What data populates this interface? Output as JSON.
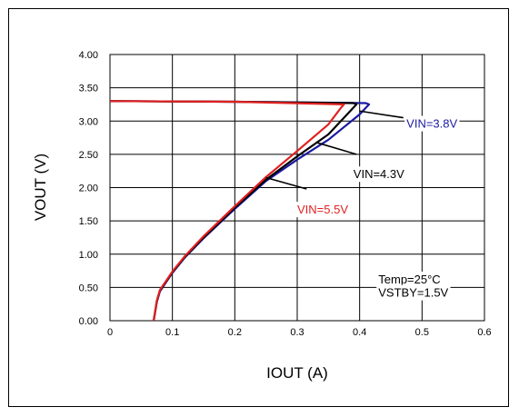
{
  "chart_data": {
    "type": "line",
    "title": "",
    "xlabel": "IOUT (A)",
    "ylabel": "VOUT (V)",
    "xlim": [
      0,
      0.6
    ],
    "ylim": [
      0,
      4.0
    ],
    "x_ticks": [
      "0",
      "0.1",
      "0.2",
      "0.3",
      "0.4",
      "0.5",
      "0.6"
    ],
    "y_ticks": [
      "0.00",
      "0.50",
      "1.00",
      "1.50",
      "2.00",
      "2.50",
      "3.00",
      "3.50",
      "4.00"
    ],
    "grid": true,
    "series": [
      {
        "name": "VIN=3.8V",
        "color": "#1a1aa0",
        "x": [
          0,
          0.2,
          0.41,
          0.415,
          0.4,
          0.35,
          0.3,
          0.25,
          0.2,
          0.15,
          0.12,
          0.1,
          0.09,
          0.08,
          0.075,
          0.07
        ],
        "y": [
          3.3,
          3.29,
          3.27,
          3.25,
          3.1,
          2.72,
          2.42,
          2.1,
          1.68,
          1.24,
          0.95,
          0.72,
          0.58,
          0.44,
          0.28,
          0.0
        ]
      },
      {
        "name": "VIN=4.3V",
        "color": "#000000",
        "x": [
          0,
          0.2,
          0.39,
          0.395,
          0.38,
          0.35,
          0.3,
          0.25,
          0.2,
          0.15,
          0.12,
          0.1,
          0.09,
          0.08,
          0.075,
          0.07
        ],
        "y": [
          3.3,
          3.29,
          3.27,
          3.25,
          3.1,
          2.8,
          2.47,
          2.12,
          1.7,
          1.25,
          0.96,
          0.73,
          0.59,
          0.45,
          0.29,
          0.0
        ]
      },
      {
        "name": "VIN=5.5V",
        "color": "#e02020",
        "x": [
          0,
          0.2,
          0.375,
          0.37,
          0.35,
          0.3,
          0.25,
          0.2,
          0.15,
          0.12,
          0.1,
          0.09,
          0.08,
          0.075,
          0.07
        ],
        "y": [
          3.3,
          3.29,
          3.25,
          3.2,
          2.95,
          2.55,
          2.16,
          1.72,
          1.27,
          0.97,
          0.74,
          0.6,
          0.46,
          0.3,
          0.0
        ]
      }
    ],
    "annotations": [
      {
        "text": "VIN=3.8V",
        "color": "#1a1aa0",
        "x": 0.475,
        "y": 2.9,
        "from": [
          0.4,
          3.15
        ],
        "to": [
          0.47,
          3.05
        ]
      },
      {
        "text": "VIN=4.3V",
        "color": "#000000",
        "x": 0.39,
        "y": 2.14,
        "from": [
          0.33,
          2.68
        ],
        "to": [
          0.395,
          2.5
        ]
      },
      {
        "text": "VIN=5.5V",
        "color": "#e02020",
        "x": 0.3,
        "y": 1.61,
        "from": [
          0.25,
          2.15
        ],
        "to": [
          0.315,
          1.98
        ]
      },
      {
        "text": "Temp=25°C",
        "color": "#000000",
        "x": 0.43,
        "y": 0.56
      },
      {
        "text": "VSTBY=1.5V",
        "color": "#000000",
        "x": 0.43,
        "y": 0.36
      }
    ]
  }
}
